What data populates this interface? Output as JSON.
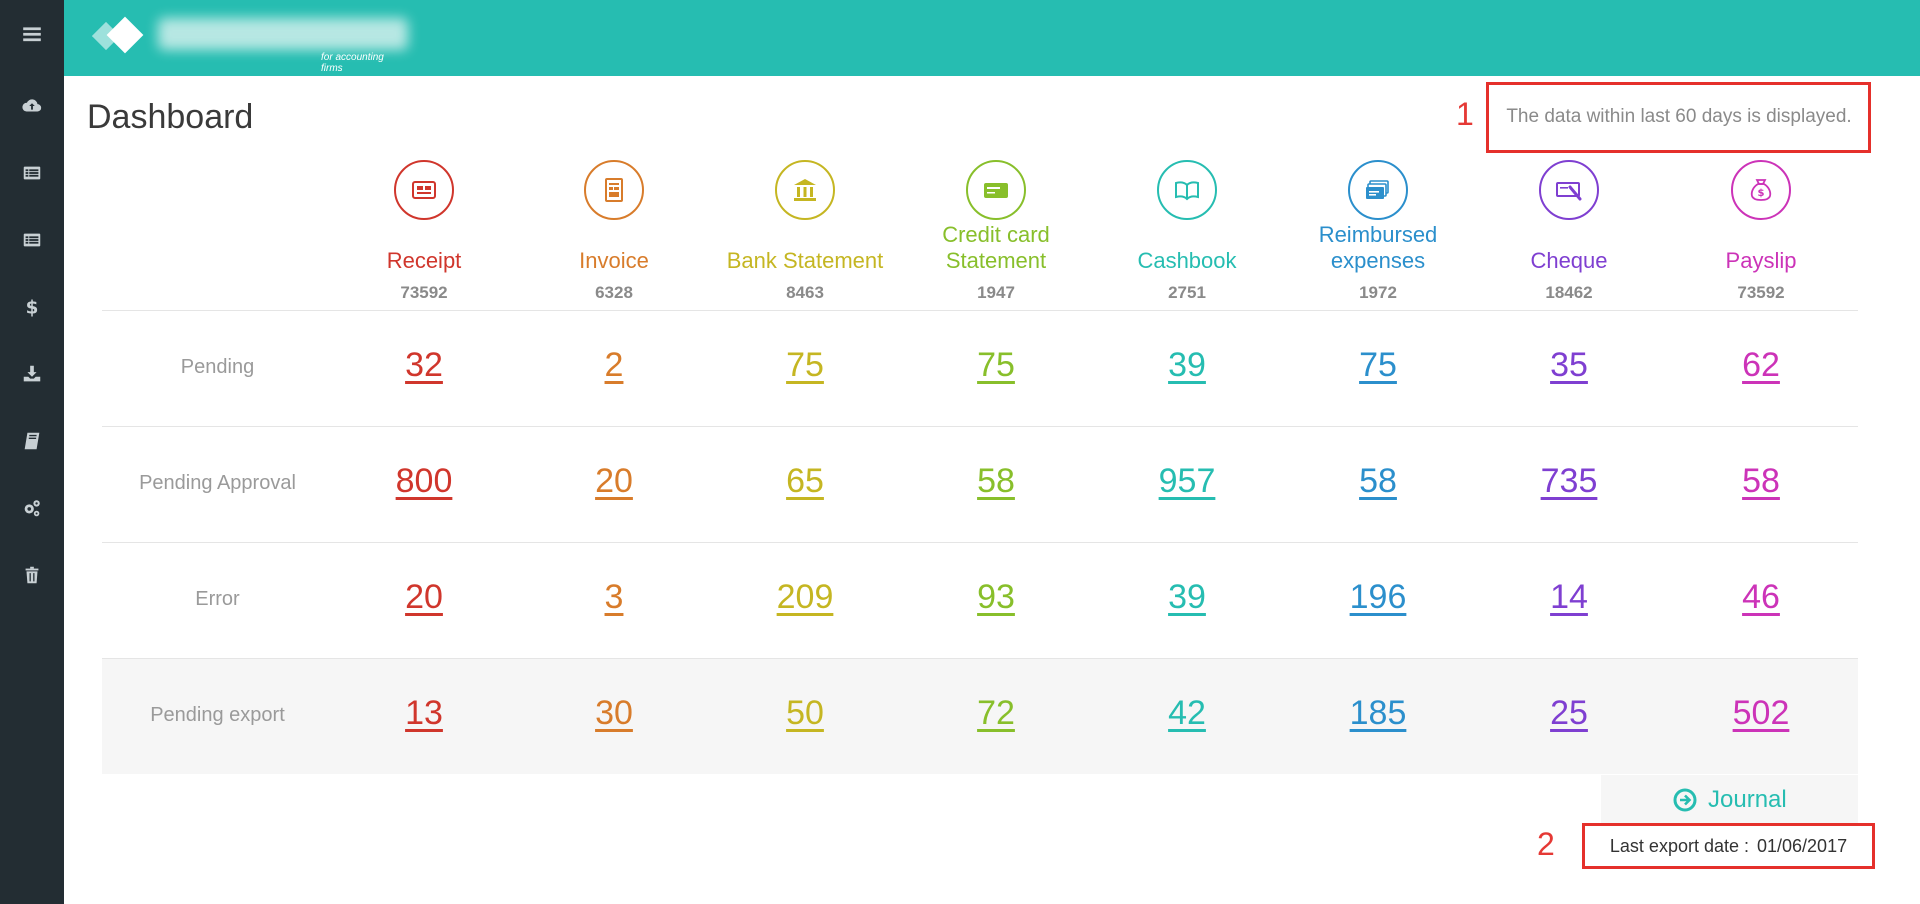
{
  "sidebar": {
    "icons": [
      "menu-icon",
      "cloud-upload-icon",
      "list-icon",
      "list-alt-icon",
      "dollar-icon",
      "download-icon",
      "book-icon",
      "gears-icon",
      "trash-icon"
    ]
  },
  "header": {
    "logo_subtitle": "for accounting firms",
    "background_color": "#26bdb1"
  },
  "page": {
    "title": "Dashboard",
    "data_note": "The data within last 60 days is displayed."
  },
  "annotations": {
    "marker_1": "1",
    "marker_2": "2",
    "box_color": "#e5302b"
  },
  "categories": [
    {
      "label": "Receipt",
      "count": "73592",
      "color": "#d0362c",
      "icon": "receipt-icon"
    },
    {
      "label": "Invoice",
      "count": "6328",
      "color": "#d87c2b",
      "icon": "invoice-icon"
    },
    {
      "label": "Bank Statement",
      "count": "8463",
      "color": "#c5b622",
      "icon": "bank-icon"
    },
    {
      "label": "Credit card Statement",
      "count": "1947",
      "color": "#88bf2b",
      "icon": "credit-card-icon"
    },
    {
      "label": "Cashbook",
      "count": "2751",
      "color": "#26bdb1",
      "icon": "book-open-icon"
    },
    {
      "label": "Reimbursed expenses",
      "count": "1972",
      "color": "#2b8fcc",
      "icon": "expenses-icon"
    },
    {
      "label": "Cheque",
      "count": "18462",
      "color": "#7f3fd1",
      "icon": "cheque-icon"
    },
    {
      "label": "Payslip",
      "count": "73592",
      "color": "#cc33b8",
      "icon": "money-bag-icon"
    }
  ],
  "rows": [
    {
      "label": "Pending",
      "values": [
        "32",
        "2",
        "75",
        "75",
        "39",
        "75",
        "35",
        "62"
      ]
    },
    {
      "label": "Pending Approval",
      "values": [
        "800",
        "20",
        "65",
        "58",
        "957",
        "58",
        "735",
        "58"
      ]
    },
    {
      "label": "Error",
      "values": [
        "20",
        "3",
        "209",
        "93",
        "39",
        "196",
        "14",
        "46"
      ]
    },
    {
      "label": "Pending export",
      "values": [
        "13",
        "30",
        "50",
        "72",
        "42",
        "185",
        "25",
        "502"
      ]
    }
  ],
  "footer": {
    "journal_label": "Journal",
    "last_export_label": "Last export date :",
    "last_export_date": "01/06/2017"
  }
}
